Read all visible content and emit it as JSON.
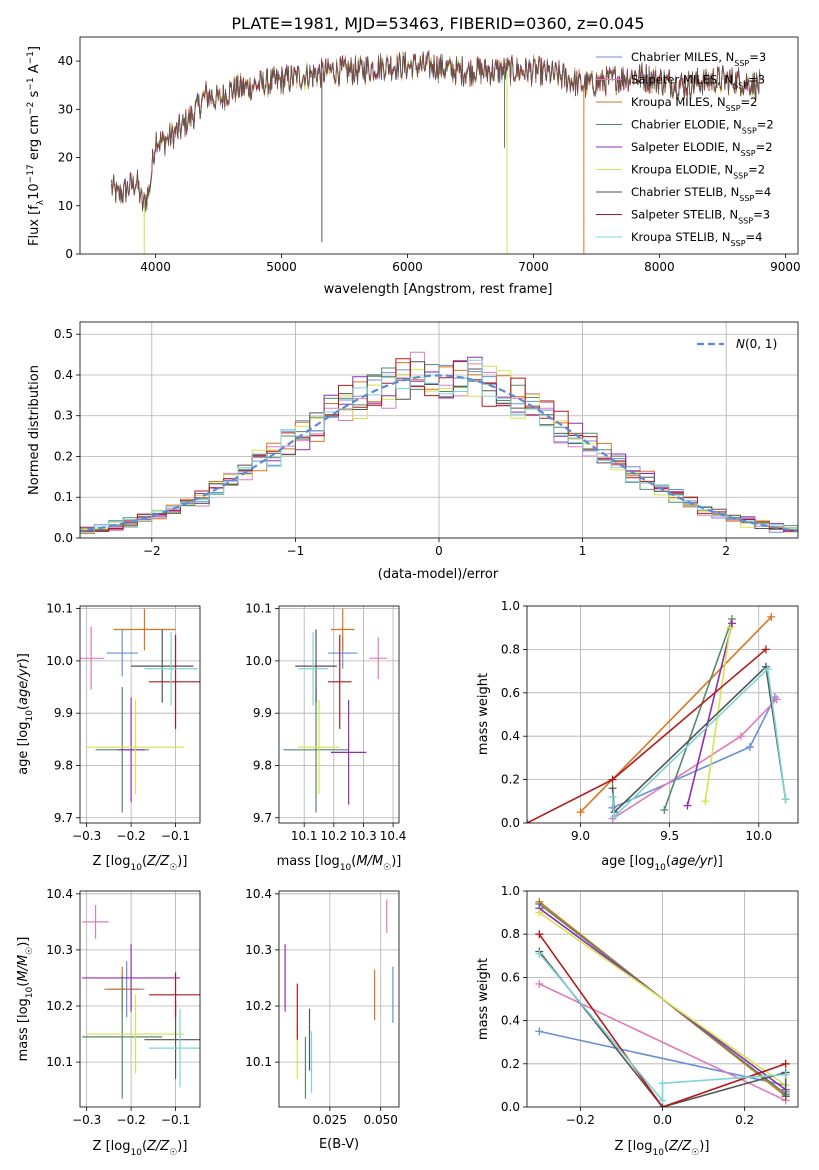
{
  "title": "PLATE=1981, MJD=53463, FIBERID=0360, z=0.045",
  "series_names": [
    "Chabrier MILES, N_SSP=3",
    "Salpeter MILES, N_SSP=3",
    "Kroupa MILES, N_SSP=2",
    "Chabrier ELODIE, N_SSP=2",
    "Salpeter ELODIE, N_SSP=2",
    "Kroupa ELODIE, N_SSP=2",
    "Chabrier STELIB, N_SSP=4",
    "Salpeter STELIB, N_SSP=3",
    "Kroupa STELIB, N_SSP=4"
  ],
  "colors": [
    "#6b8fd6",
    "#e07bbb",
    "#d9751e",
    "#58896a",
    "#8f2fb0",
    "#d4e34f",
    "#555555",
    "#b21a1a",
    "#7dd4d4"
  ],
  "chart_data": [
    {
      "type": "line",
      "panel": "spectrum",
      "xlabel": "wavelength [Angstrom, rest frame]",
      "ylabel": "Flux [f_λ10^-17 erg cm^-2 s^-1 A^-1]",
      "xlim": [
        3400,
        9100
      ],
      "ylim": [
        0,
        45
      ],
      "xticks": [
        4000,
        5000,
        6000,
        7000,
        8000,
        9000
      ],
      "yticks": [
        0,
        10,
        20,
        30,
        40
      ],
      "legend": {
        "loc": "top-right",
        "entries": [
          {
            "pre": "Chabrier MILES, N",
            "sub": "SSP",
            "post": "=3"
          },
          {
            "pre": "Salpeter MILES, N",
            "sub": "SSP",
            "post": "=3"
          },
          {
            "pre": "Kroupa MILES, N",
            "sub": "SSP",
            "post": "=2"
          },
          {
            "pre": "Chabrier ELODIE, N",
            "sub": "SSP",
            "post": "=2"
          },
          {
            "pre": "Salpeter ELODIE, N",
            "sub": "SSP",
            "post": "=2"
          },
          {
            "pre": "Kroupa ELODIE, N",
            "sub": "SSP",
            "post": "=2"
          },
          {
            "pre": "Chabrier STELIB, N",
            "sub": "SSP",
            "post": "=4"
          },
          {
            "pre": "Salpeter STELIB, N",
            "sub": "SSP",
            "post": "=3"
          },
          {
            "pre": "Kroupa STELIB, N",
            "sub": "SSP",
            "post": "=4"
          }
        ]
      },
      "continuum": {
        "x": [
          3650,
          3700,
          3750,
          3800,
          3850,
          3900,
          3950,
          4000,
          4050,
          4100,
          4200,
          4300,
          4400,
          4500,
          4600,
          4800,
          5000,
          5200,
          5400,
          5600,
          5800,
          6000,
          6200,
          6400,
          6600,
          6800,
          7000,
          7200,
          7400,
          7600,
          7800,
          8000,
          8200,
          8400,
          8600,
          8800
        ],
        "y": [
          14,
          12,
          13,
          14,
          15,
          10,
          13,
          24,
          23,
          24,
          26,
          29,
          33,
          32,
          34,
          35,
          36,
          37,
          38,
          38,
          39,
          39,
          39,
          38,
          38,
          38,
          38,
          37,
          35,
          36,
          37,
          36,
          35,
          36,
          36,
          35
        ]
      },
      "noise_amplitude": 3.5,
      "spikes": [
        {
          "x": 5320,
          "y_min": 2.5,
          "series": 6
        },
        {
          "x": 3910,
          "y_min": 0,
          "series": 5
        },
        {
          "x": 6790,
          "y_min": 0,
          "series": 5
        },
        {
          "x": 6770,
          "y_min": 22,
          "series": 3
        },
        {
          "x": 7400,
          "y_min": 0,
          "series": 2
        }
      ]
    },
    {
      "type": "histogram",
      "panel": "residuals",
      "xlabel": "(data-model)/error",
      "ylabel": "Normed distribution",
      "xlim": [
        -2.5,
        2.5
      ],
      "ylim": [
        0,
        0.53
      ],
      "xticks": [
        -2,
        -1,
        0,
        1,
        2
      ],
      "yticks": [
        0,
        0.1,
        0.2,
        0.3,
        0.4,
        0.5
      ],
      "bin_width": 0.1,
      "reference_curve": {
        "label": "N(0,1)",
        "mu": 0,
        "sigma": 1,
        "legend_loc": "top-right"
      },
      "grid": true
    },
    {
      "type": "scatter_errorbar",
      "panel": "age-vs-Z",
      "xlabel": "Z [log10(Z/Z☉)]",
      "ylabel": "age  [log10(age/yr)]",
      "xlim": [
        -0.315,
        -0.045
      ],
      "ylim": [
        9.69,
        10.105
      ],
      "xticks": [
        -0.3,
        -0.2,
        -0.1
      ],
      "yticks": [
        9.7,
        9.8,
        9.9,
        10.0,
        10.1
      ],
      "points": [
        {
          "x": -0.22,
          "xerr": 0.035,
          "y": 10.015,
          "yerr": 0.045
        },
        {
          "x": -0.29,
          "xerr": 0.03,
          "y": 10.005,
          "yerr": 0.06
        },
        {
          "x": -0.17,
          "xerr": 0.07,
          "y": 10.06,
          "yerr": 0.04
        },
        {
          "x": -0.22,
          "xerr": 0.06,
          "y": 9.83,
          "yerr": 0.12
        },
        {
          "x": -0.2,
          "xerr": 0.03,
          "y": 9.83,
          "yerr": 0.1
        },
        {
          "x": -0.19,
          "xerr": 0.11,
          "y": 9.835,
          "yerr": 0.09
        },
        {
          "x": -0.13,
          "xerr": 0.07,
          "y": 9.99,
          "yerr": 0.07
        },
        {
          "x": -0.1,
          "xerr": 0.06,
          "y": 9.96,
          "yerr": 0.09
        },
        {
          "x": -0.11,
          "xerr": 0.06,
          "y": 9.985,
          "yerr": 0.07
        }
      ]
    },
    {
      "type": "scatter_errorbar",
      "panel": "age-vs-mass",
      "xlabel": "mass [log10(M/M☉)]",
      "ylabel": "",
      "xlim": [
        10.015,
        10.42
      ],
      "ylim": [
        9.69,
        10.105
      ],
      "xticks": [
        10.1,
        10.2,
        10.3,
        10.4
      ],
      "yticks": [
        9.7,
        9.8,
        9.9,
        10.0,
        10.1
      ],
      "points": [
        {
          "x": 10.23,
          "xerr": 0.05,
          "y": 10.015,
          "yerr": 0.03
        },
        {
          "x": 10.35,
          "xerr": 0.03,
          "y": 10.005,
          "yerr": 0.04
        },
        {
          "x": 10.23,
          "xerr": 0.04,
          "y": 10.06,
          "yerr": 0.04
        },
        {
          "x": 10.14,
          "xerr": 0.11,
          "y": 9.83,
          "yerr": 0.12
        },
        {
          "x": 10.25,
          "xerr": 0.06,
          "y": 9.825,
          "yerr": 0.1
        },
        {
          "x": 10.15,
          "xerr": 0.07,
          "y": 9.835,
          "yerr": 0.09
        },
        {
          "x": 10.14,
          "xerr": 0.07,
          "y": 9.99,
          "yerr": 0.07
        },
        {
          "x": 10.22,
          "xerr": 0.04,
          "y": 9.96,
          "yerr": 0.09
        },
        {
          "x": 10.13,
          "xerr": 0.05,
          "y": 9.985,
          "yerr": 0.07
        }
      ]
    },
    {
      "type": "line",
      "panel": "mass-weight-vs-age",
      "xlabel": "age  [log10(age/yr)]",
      "ylabel": "mass weight",
      "xlim": [
        8.7,
        10.22
      ],
      "ylim": [
        0,
        1
      ],
      "xticks": [
        9.0,
        9.5,
        10.0
      ],
      "yticks": [
        0,
        0.2,
        0.4,
        0.6,
        0.8,
        1.0
      ],
      "series": [
        {
          "x": [
            9.18,
            9.95,
            10.09
          ],
          "y": [
            0.07,
            0.35,
            0.58
          ]
        },
        {
          "x": [
            9.18,
            9.9,
            10.1
          ],
          "y": [
            0.02,
            0.4,
            0.57
          ]
        },
        {
          "x": [
            9.0,
            10.07
          ],
          "y": [
            0.05,
            0.95
          ]
        },
        {
          "x": [
            9.47,
            9.85
          ],
          "y": [
            0.06,
            0.94
          ]
        },
        {
          "x": [
            9.6,
            9.85
          ],
          "y": [
            0.08,
            0.92
          ]
        },
        {
          "x": [
            9.7,
            9.84
          ],
          "y": [
            0.1,
            0.9
          ]
        },
        {
          "x": [
            9.18,
            9.19,
            10.04,
            10.15
          ],
          "y": [
            0.16,
            0.05,
            0.72,
            0.11
          ]
        },
        {
          "x": [
            8.7,
            9.18,
            10.04
          ],
          "y": [
            0.0,
            0.2,
            0.8
          ]
        },
        {
          "x": [
            9.18,
            9.19,
            10.05,
            10.15
          ],
          "y": [
            0.12,
            0.03,
            0.71,
            0.11
          ]
        }
      ]
    },
    {
      "type": "scatter_errorbar",
      "panel": "mass-vs-Z",
      "xlabel": "Z [log10(Z/Z☉)]",
      "ylabel": "mass [log10(M/M☉)]",
      "xlim": [
        -0.315,
        -0.045
      ],
      "ylim": [
        10.02,
        10.405
      ],
      "xticks": [
        -0.3,
        -0.2,
        -0.1
      ],
      "yticks": [
        10.1,
        10.2,
        10.3,
        10.4
      ],
      "points": [
        {
          "x": -0.21,
          "xerr": 0.04,
          "y": 10.23,
          "yerr": 0.05
        },
        {
          "x": -0.28,
          "xerr": 0.03,
          "y": 10.35,
          "yerr": 0.03
        },
        {
          "x": -0.22,
          "xerr": 0.04,
          "y": 10.23,
          "yerr": 0.04
        },
        {
          "x": -0.22,
          "xerr": 0.09,
          "y": 10.145,
          "yerr": 0.11
        },
        {
          "x": -0.2,
          "xerr": 0.11,
          "y": 10.25,
          "yerr": 0.06
        },
        {
          "x": -0.19,
          "xerr": 0.11,
          "y": 10.15,
          "yerr": 0.07
        },
        {
          "x": -0.1,
          "xerr": 0.07,
          "y": 10.14,
          "yerr": 0.07
        },
        {
          "x": -0.1,
          "xerr": 0.06,
          "y": 10.22,
          "yerr": 0.04
        },
        {
          "x": -0.09,
          "xerr": 0.07,
          "y": 10.125,
          "yerr": 0.07
        }
      ]
    },
    {
      "type": "scatter_errorbar",
      "panel": "mass-vs-EBV",
      "xlabel": "E(B-V)",
      "ylabel": "",
      "xlim": [
        0.0,
        0.059
      ],
      "ylim": [
        10.02,
        10.405
      ],
      "xticks": [
        0.025,
        0.05
      ],
      "yticks": [
        10.1,
        10.2,
        10.3,
        10.4
      ],
      "points": [
        {
          "x": 0.056,
          "xerr": 0,
          "y": 10.22,
          "yerr": 0.05
        },
        {
          "x": 0.053,
          "xerr": 0,
          "y": 10.36,
          "yerr": 0.03
        },
        {
          "x": 0.047,
          "xerr": 0,
          "y": 10.22,
          "yerr": 0.045
        },
        {
          "x": 0.013,
          "xerr": 0,
          "y": 10.09,
          "yerr": 0.055
        },
        {
          "x": 0.003,
          "xerr": 0,
          "y": 10.25,
          "yerr": 0.06
        },
        {
          "x": 0.009,
          "xerr": 0,
          "y": 10.12,
          "yerr": 0.05
        },
        {
          "x": 0.015,
          "xerr": 0,
          "y": 10.14,
          "yerr": 0.055
        },
        {
          "x": 0.009,
          "xerr": 0,
          "y": 10.19,
          "yerr": 0.05
        },
        {
          "x": 0.016,
          "xerr": 0,
          "y": 10.1,
          "yerr": 0.055
        }
      ]
    },
    {
      "type": "line",
      "panel": "mass-weight-vs-Z",
      "xlabel": "Z [log10(Z/Z☉)]",
      "ylabel": "mass weight",
      "xlim": [
        -0.33,
        0.33
      ],
      "ylim": [
        0,
        1
      ],
      "xticks": [
        -0.2,
        0.0,
        0.2
      ],
      "yticks": [
        0,
        0.2,
        0.4,
        0.6,
        0.8,
        1.0
      ],
      "series": [
        {
          "x": [
            -0.3,
            0.3,
            0.3
          ],
          "y": [
            0.35,
            0.1,
            0.07
          ]
        },
        {
          "x": [
            -0.3,
            0.3
          ],
          "y": [
            0.57,
            0.03
          ]
        },
        {
          "x": [
            -0.3,
            0.3
          ],
          "y": [
            0.95,
            0.05
          ]
        },
        {
          "x": [
            -0.3,
            0.3
          ],
          "y": [
            0.94,
            0.06
          ]
        },
        {
          "x": [
            -0.3,
            0.3
          ],
          "y": [
            0.92,
            0.08
          ]
        },
        {
          "x": [
            -0.3,
            0.3
          ],
          "y": [
            0.9,
            0.1
          ]
        },
        {
          "x": [
            -0.3,
            0.0,
            0.3,
            0.3
          ],
          "y": [
            0.72,
            0.0,
            0.16,
            0.05
          ]
        },
        {
          "x": [
            -0.3,
            0.0,
            0.3
          ],
          "y": [
            0.8,
            0.0,
            0.2
          ]
        },
        {
          "x": [
            -0.3,
            0.0,
            0.0,
            0.3
          ],
          "y": [
            0.71,
            0.03,
            0.11,
            0.15
          ]
        }
      ]
    }
  ]
}
